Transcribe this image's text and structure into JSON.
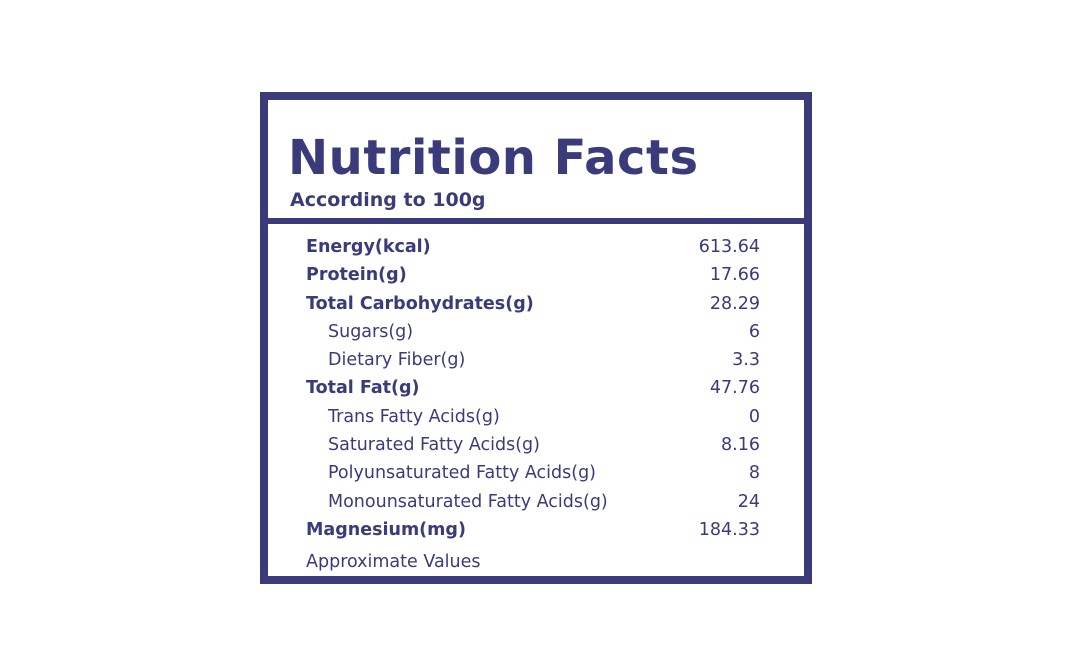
{
  "label": {
    "title": "Nutrition Facts",
    "subtitle": "According to 100g",
    "rows": [
      {
        "label": "Energy(kcal)",
        "value": "613.64",
        "level": "main"
      },
      {
        "label": "Protein(g)",
        "value": "17.66",
        "level": "main"
      },
      {
        "label": "Total Carbohydrates(g)",
        "value": "28.29",
        "level": "main"
      },
      {
        "label": "Sugars(g)",
        "value": "6",
        "level": "sub"
      },
      {
        "label": "Dietary Fiber(g)",
        "value": "3.3",
        "level": "sub"
      },
      {
        "label": "Total Fat(g)",
        "value": "47.76",
        "level": "main"
      },
      {
        "label": "Trans Fatty Acids(g)",
        "value": "0",
        "level": "sub"
      },
      {
        "label": "Saturated Fatty Acids(g)",
        "value": "8.16",
        "level": "sub"
      },
      {
        "label": "Polyunsaturated Fatty Acids(g)",
        "value": "8",
        "level": "sub"
      },
      {
        "label": "Monounsaturated Fatty Acids(g)",
        "value": "24",
        "level": "sub"
      },
      {
        "label": "Magnesium(mg)",
        "value": "184.33",
        "level": "main"
      }
    ],
    "footnote": "Approximate Values"
  },
  "colors": {
    "ink": "#3a3b7a",
    "background": "#ffffff"
  }
}
